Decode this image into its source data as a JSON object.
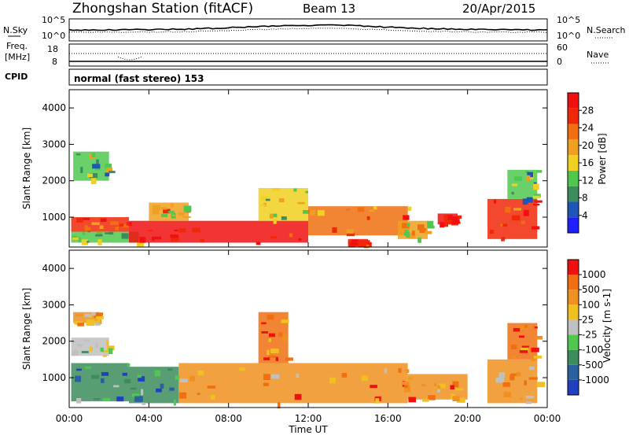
{
  "header": {
    "title": "Zhongshan Station (fitACF)",
    "beam": "Beam 13",
    "date": "20/Apr/2015"
  },
  "noise_panel": {
    "left_label": "N.Sky",
    "right_label": "N.Search",
    "left_ticks": [
      "10^5",
      "10^0"
    ],
    "right_ticks": [
      "10^5",
      "10^0"
    ]
  },
  "freq_panel": {
    "left_label_line1": "Freq.",
    "left_label_line2": "[MHz]",
    "right_label": "Nave",
    "left_ticks": [
      "18",
      "8"
    ],
    "right_ticks": [
      "60",
      "0"
    ]
  },
  "cpid": {
    "label": "CPID",
    "text": "normal (fast stereo) 153"
  },
  "colors": {
    "power_scale": [
      "#1e1eff",
      "#2055b8",
      "#3c8c5c",
      "#50c850",
      "#f0d020",
      "#f0a020",
      "#f07010",
      "#f02808",
      "#f01010"
    ],
    "velocity_scale": [
      "#2040c0",
      "#2a60a0",
      "#3c8c5c",
      "#50c850",
      "#c0c0c0",
      "#f0c020",
      "#f09020",
      "#f07010",
      "#f01010"
    ]
  },
  "chart_data": [
    {
      "type": "heatmap",
      "name": "power",
      "ylabel": "Slant Range [km]",
      "colorbar_label": "Power [dB]",
      "colorbar_ticks": [
        "28",
        "24",
        "20",
        "16",
        "12",
        "8",
        "4"
      ],
      "ylim": [
        180,
        4500
      ],
      "yticks": [
        "1000",
        "2000",
        "3000",
        "4000"
      ],
      "xlim_hours": [
        0,
        24
      ],
      "cells": [
        {
          "t": [
            0.1,
            3.0
          ],
          "r": [
            600,
            1000
          ],
          "level": 7
        },
        {
          "t": [
            0.1,
            3.5
          ],
          "r": [
            300,
            600
          ],
          "level": 3
        },
        {
          "t": [
            0.2,
            2.0
          ],
          "r": [
            2000,
            2800
          ],
          "level": 3
        },
        {
          "t": [
            3.0,
            12.0
          ],
          "r": [
            300,
            900
          ],
          "level": 8
        },
        {
          "t": [
            4.0,
            6.0
          ],
          "r": [
            900,
            1400
          ],
          "level": 5
        },
        {
          "t": [
            9.5,
            12.0
          ],
          "r": [
            900,
            1800
          ],
          "level": 4
        },
        {
          "t": [
            12.0,
            17.0
          ],
          "r": [
            500,
            1300
          ],
          "level": 6
        },
        {
          "t": [
            14.0,
            15.0
          ],
          "r": [
            250,
            400
          ],
          "level": 8
        },
        {
          "t": [
            16.5,
            18.0
          ],
          "r": [
            400,
            900
          ],
          "level": 5
        },
        {
          "t": [
            18.5,
            19.5
          ],
          "r": [
            800,
            1100
          ],
          "level": 8
        },
        {
          "t": [
            21.0,
            23.5
          ],
          "r": [
            400,
            1500
          ],
          "level": 7
        },
        {
          "t": [
            22.0,
            23.5
          ],
          "r": [
            1500,
            2300
          ],
          "level": 3
        }
      ]
    },
    {
      "type": "heatmap",
      "name": "velocity",
      "ylabel": "Slant Range [km]",
      "xlabel": "Time UT",
      "colorbar_label": "Velocity [m s-1]",
      "colorbar_ticks": [
        "1000",
        "500",
        "100",
        "25",
        "-25",
        "-100",
        "-500",
        "-1000"
      ],
      "ylim": [
        180,
        4500
      ],
      "yticks": [
        "1000",
        "2000",
        "3000",
        "4000"
      ],
      "xticks": [
        "00:00",
        "04:00",
        "08:00",
        "12:00",
        "16:00",
        "20:00",
        "00:00"
      ],
      "cells": [
        {
          "t": [
            0.1,
            3.0
          ],
          "r": [
            350,
            1400
          ],
          "level": 2
        },
        {
          "t": [
            0.1,
            2.0
          ],
          "r": [
            1600,
            2100
          ],
          "level": 4
        },
        {
          "t": [
            0.2,
            1.5
          ],
          "r": [
            2500,
            2800
          ],
          "level": 6
        },
        {
          "t": [
            3.0,
            5.5
          ],
          "r": [
            300,
            1300
          ],
          "level": 2
        },
        {
          "t": [
            5.5,
            12.0
          ],
          "r": [
            300,
            1400
          ],
          "level": 6
        },
        {
          "t": [
            9.5,
            11.0
          ],
          "r": [
            1400,
            2800
          ],
          "level": 7
        },
        {
          "t": [
            12.0,
            17.0
          ],
          "r": [
            300,
            1400
          ],
          "level": 6
        },
        {
          "t": [
            17.0,
            20.0
          ],
          "r": [
            400,
            1100
          ],
          "level": 6
        },
        {
          "t": [
            21.0,
            23.5
          ],
          "r": [
            300,
            1500
          ],
          "level": 6
        },
        {
          "t": [
            22.0,
            23.5
          ],
          "r": [
            1500,
            2500
          ],
          "level": 7
        }
      ]
    }
  ]
}
